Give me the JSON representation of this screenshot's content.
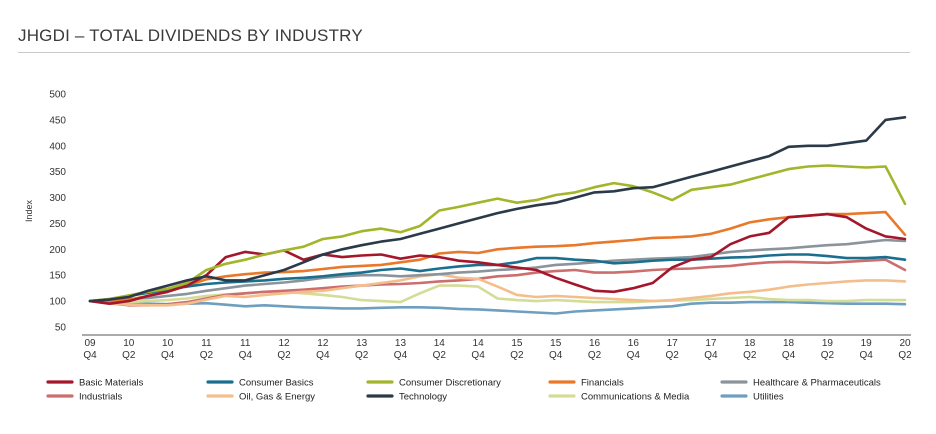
{
  "title": "JHGDI – TOTAL DIVIDENDS BY INDUSTRY",
  "chart_data": {
    "type": "line",
    "ylabel": "Index",
    "xlabel": "",
    "ylim": [
      50,
      500
    ],
    "yticks": [
      50,
      100,
      150,
      200,
      250,
      300,
      350,
      400,
      450,
      500
    ],
    "grid": false,
    "legend_position": "bottom",
    "x": [
      "09 Q4",
      "10 Q1",
      "10 Q2",
      "10 Q3",
      "10 Q4",
      "11 Q1",
      "11 Q2",
      "11 Q3",
      "11 Q4",
      "12 Q1",
      "12 Q2",
      "12 Q3",
      "12 Q4",
      "13 Q1",
      "13 Q2",
      "13 Q3",
      "13 Q4",
      "14 Q1",
      "14 Q2",
      "14 Q3",
      "14 Q4",
      "15 Q1",
      "15 Q2",
      "15 Q3",
      "15 Q4",
      "16 Q1",
      "16 Q2",
      "16 Q3",
      "16 Q4",
      "17 Q1",
      "17 Q2",
      "17 Q3",
      "17 Q4",
      "18 Q1",
      "18 Q2",
      "18 Q3",
      "18 Q4",
      "19 Q1",
      "19 Q2",
      "19 Q3",
      "19 Q4",
      "20 Q1",
      "20 Q2"
    ],
    "x_tick_labels": [
      [
        "09",
        "Q4"
      ],
      [
        "10",
        "Q2"
      ],
      [
        "10",
        "Q4"
      ],
      [
        "11",
        "Q2"
      ],
      [
        "11",
        "Q4"
      ],
      [
        "12",
        "Q2"
      ],
      [
        "12",
        "Q4"
      ],
      [
        "13",
        "Q2"
      ],
      [
        "13",
        "Q4"
      ],
      [
        "14",
        "Q2"
      ],
      [
        "14",
        "Q4"
      ],
      [
        "15",
        "Q2"
      ],
      [
        "15",
        "Q4"
      ],
      [
        "16",
        "Q2"
      ],
      [
        "16",
        "Q4"
      ],
      [
        "17",
        "Q2"
      ],
      [
        "17",
        "Q4"
      ],
      [
        "18",
        "Q2"
      ],
      [
        "18",
        "Q4"
      ],
      [
        "19",
        "Q2"
      ],
      [
        "19",
        "Q4"
      ],
      [
        "20",
        "Q2"
      ]
    ],
    "series": [
      {
        "name": "Basic Materials",
        "color": "#a3162b",
        "values": [
          100,
          95,
          100,
          110,
          118,
          130,
          150,
          185,
          195,
          190,
          198,
          180,
          190,
          185,
          188,
          190,
          182,
          188,
          185,
          178,
          175,
          170,
          165,
          160,
          145,
          132,
          120,
          118,
          125,
          135,
          165,
          180,
          185,
          210,
          225,
          232,
          262,
          265,
          268,
          262,
          240,
          225,
          220
        ]
      },
      {
        "name": "Consumer Basics",
        "color": "#1a6f8f",
        "values": [
          100,
          104,
          110,
          116,
          122,
          128,
          133,
          136,
          138,
          140,
          143,
          145,
          148,
          152,
          155,
          160,
          163,
          158,
          163,
          167,
          170,
          170,
          175,
          183,
          183,
          180,
          178,
          173,
          175,
          178,
          180,
          180,
          182,
          184,
          185,
          188,
          190,
          190,
          187,
          183,
          183,
          185,
          180
        ]
      },
      {
        "name": "Consumer Discretionary",
        "color": "#a3b52a",
        "values": [
          100,
          104,
          111,
          118,
          124,
          135,
          160,
          172,
          180,
          190,
          198,
          205,
          220,
          225,
          235,
          240,
          233,
          245,
          275,
          282,
          290,
          298,
          290,
          295,
          305,
          310,
          320,
          328,
          322,
          310,
          295,
          315,
          320,
          325,
          335,
          345,
          355,
          360,
          362,
          360,
          358,
          360,
          288
        ]
      },
      {
        "name": "Financials",
        "color": "#e9782a",
        "values": [
          100,
          100,
          103,
          110,
          118,
          130,
          142,
          148,
          152,
          155,
          156,
          158,
          162,
          166,
          168,
          170,
          175,
          180,
          192,
          195,
          193,
          200,
          203,
          205,
          206,
          208,
          212,
          215,
          218,
          222,
          223,
          225,
          230,
          240,
          252,
          258,
          262,
          265,
          268,
          268,
          270,
          272,
          228
        ]
      },
      {
        "name": "Healthcare & Pharmaceuticals",
        "color": "#8b949b",
        "values": [
          100,
          101,
          104,
          106,
          110,
          114,
          120,
          125,
          130,
          133,
          136,
          140,
          145,
          148,
          150,
          150,
          148,
          150,
          152,
          155,
          157,
          160,
          162,
          165,
          170,
          172,
          175,
          178,
          180,
          182,
          183,
          185,
          190,
          195,
          198,
          200,
          202,
          205,
          208,
          210,
          214,
          218,
          216
        ]
      },
      {
        "name": "Industrials",
        "color": "#cc6e6e",
        "values": [
          100,
          96,
          92,
          92,
          94,
          98,
          105,
          112,
          115,
          118,
          120,
          122,
          125,
          128,
          130,
          132,
          133,
          135,
          138,
          140,
          143,
          148,
          150,
          155,
          158,
          160,
          155,
          155,
          157,
          160,
          162,
          163,
          166,
          168,
          172,
          175,
          176,
          175,
          174,
          176,
          178,
          180,
          160
        ]
      },
      {
        "name": "Oil, Gas & Energy",
        "color": "#f4be8c",
        "values": [
          100,
          96,
          93,
          92,
          92,
          95,
          103,
          110,
          108,
          112,
          115,
          118,
          120,
          125,
          130,
          135,
          140,
          148,
          152,
          145,
          143,
          128,
          112,
          108,
          110,
          108,
          106,
          104,
          102,
          100,
          102,
          106,
          110,
          115,
          118,
          122,
          128,
          132,
          135,
          138,
          140,
          140,
          138
        ]
      },
      {
        "name": "Technology",
        "color": "#2b3a48",
        "values": [
          100,
          103,
          108,
          120,
          130,
          140,
          148,
          140,
          140,
          150,
          160,
          175,
          190,
          200,
          208,
          215,
          220,
          230,
          240,
          250,
          260,
          270,
          278,
          285,
          290,
          300,
          310,
          312,
          318,
          320,
          330,
          340,
          350,
          360,
          370,
          380,
          398,
          400,
          400,
          405,
          410,
          450,
          455
        ]
      },
      {
        "name": "Communications & Media",
        "color": "#d4dc96",
        "values": [
          100,
          98,
          98,
          100,
          102,
          105,
          110,
          113,
          115,
          118,
          118,
          115,
          112,
          108,
          102,
          100,
          98,
          115,
          130,
          130,
          128,
          105,
          102,
          100,
          102,
          100,
          98,
          98,
          98,
          100,
          101,
          102,
          104,
          106,
          108,
          104,
          102,
          102,
          100,
          100,
          102,
          102,
          102
        ]
      },
      {
        "name": "Utilities",
        "color": "#6f9fbf",
        "values": [
          100,
          98,
          96,
          95,
          94,
          95,
          96,
          93,
          90,
          92,
          90,
          88,
          87,
          86,
          86,
          87,
          88,
          88,
          87,
          85,
          84,
          82,
          80,
          78,
          76,
          80,
          82,
          84,
          86,
          88,
          90,
          95,
          97,
          97,
          98,
          98,
          98,
          97,
          96,
          95,
          95,
          95,
          94
        ]
      }
    ]
  }
}
